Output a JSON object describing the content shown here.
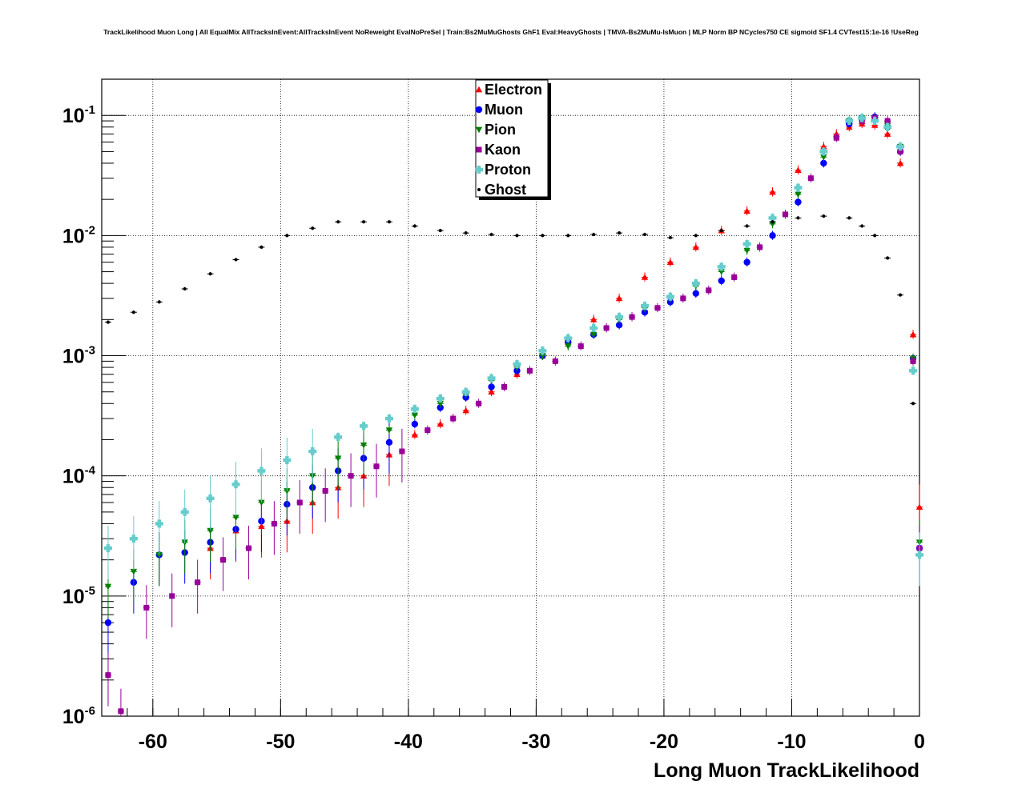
{
  "chart_data": {
    "type": "scatter",
    "title": "TrackLikelihood Muon Long | All EqualMix AllTracksInEvent:AllTracksInEvent NoReweight EvalNoPreSel | Train:Bs2MuMuGhosts GhF1 Eval:HeavyGhosts | TMVA-Bs2MuMu-IsMuon | MLP Norm BP NCycles750 CE sigmoid SF1.4 CVTest15:1e-16 !UseReg",
    "xlabel": "Long Muon TrackLikelihood",
    "ylabel": "",
    "xlim": [
      -64,
      0
    ],
    "ylim": [
      1e-06,
      0.2
    ],
    "yscale": "log",
    "grid": true,
    "legend_position": "top-center",
    "x_ticks": [
      -60,
      -50,
      -40,
      -30,
      -20,
      -10,
      0
    ],
    "x_tick_labels": [
      "-60",
      "-50",
      "-40",
      "-30",
      "-20",
      "-10",
      "0"
    ],
    "y_ticks": [
      {
        "value": 1e-06,
        "base": "10",
        "exp": "-6"
      },
      {
        "value": 1e-05,
        "base": "10",
        "exp": "-5"
      },
      {
        "value": 0.0001,
        "base": "10",
        "exp": "-4"
      },
      {
        "value": 0.001,
        "base": "10",
        "exp": "-3"
      },
      {
        "value": 0.01,
        "base": "10",
        "exp": "-2"
      },
      {
        "value": 0.1,
        "base": "10",
        "exp": "-1"
      }
    ],
    "series": [
      {
        "name": "Electron",
        "color": "#ff0000",
        "marker": "triangle-up",
        "x": [
          -55.5,
          -53.5,
          -51.5,
          -49.5,
          -47.5,
          -45.5,
          -43.5,
          -41.5,
          -39.5,
          -37.5,
          -35.5,
          -33.5,
          -31.5,
          -29.5,
          -27.5,
          -25.5,
          -23.5,
          -21.5,
          -19.5,
          -17.5,
          -15.5,
          -13.5,
          -11.5,
          -9.5,
          -7.5,
          -6.5,
          -5.5,
          -4.5,
          -3.5,
          -2.5,
          -1.5,
          -0.5,
          0
        ],
        "y": [
          2.5e-05,
          3.5e-05,
          3.8e-05,
          4.2e-05,
          6e-05,
          8e-05,
          0.0001,
          0.00015,
          0.00022,
          0.00027,
          0.00035,
          0.0005,
          0.0007,
          0.001,
          0.0013,
          0.002,
          0.003,
          0.0045,
          0.006,
          0.008,
          0.011,
          0.016,
          0.023,
          0.035,
          0.055,
          0.07,
          0.08,
          0.085,
          0.083,
          0.07,
          0.04,
          0.0015,
          5.5e-05
        ]
      },
      {
        "name": "Muon",
        "color": "#0000ff",
        "marker": "circle",
        "x": [
          -63.5,
          -61.5,
          -59.5,
          -57.5,
          -55.5,
          -53.5,
          -51.5,
          -49.5,
          -47.5,
          -45.5,
          -43.5,
          -41.5,
          -39.5,
          -37.5,
          -35.5,
          -33.5,
          -31.5,
          -29.5,
          -27.5,
          -25.5,
          -23.5,
          -21.5,
          -19.5,
          -17.5,
          -15.5,
          -13.5,
          -11.5,
          -9.5,
          -7.5,
          -5.5,
          -4.5,
          -3.5,
          -2.5,
          -1.5,
          -0.5,
          0
        ],
        "y": [
          6e-06,
          1.3e-05,
          2.2e-05,
          2.3e-05,
          2.8e-05,
          3.6e-05,
          4.2e-05,
          5.8e-05,
          8e-05,
          0.00011,
          0.00014,
          0.00019,
          0.00027,
          0.00037,
          0.00045,
          0.00055,
          0.00075,
          0.001,
          0.0013,
          0.0015,
          0.0018,
          0.0023,
          0.0028,
          0.0033,
          0.0042,
          0.006,
          0.01,
          0.019,
          0.04,
          0.085,
          0.095,
          0.097,
          0.08,
          0.05,
          0.00095,
          2.5e-05
        ]
      },
      {
        "name": "Pion",
        "color": "#008000",
        "marker": "triangle-down",
        "x": [
          -63.5,
          -61.5,
          -59.5,
          -57.5,
          -55.5,
          -53.5,
          -51.5,
          -49.5,
          -47.5,
          -45.5,
          -43.5,
          -41.5,
          -39.5,
          -37.5,
          -35.5,
          -33.5,
          -31.5,
          -29.5,
          -27.5,
          -25.5,
          -23.5,
          -21.5,
          -19.5,
          -17.5,
          -15.5,
          -13.5,
          -11.5,
          -9.5,
          -7.5,
          -5.5,
          -4.5,
          -3.5,
          -2.5,
          -1.5,
          -0.5,
          0
        ],
        "y": [
          1.2e-05,
          1.6e-05,
          2.2e-05,
          2.8e-05,
          3.5e-05,
          4.5e-05,
          6e-05,
          7.5e-05,
          0.0001,
          0.00014,
          0.00018,
          0.00024,
          0.00032,
          0.0004,
          0.00048,
          0.00062,
          0.0008,
          0.001,
          0.0012,
          0.0015,
          0.002,
          0.0025,
          0.003,
          0.0038,
          0.005,
          0.0075,
          0.0125,
          0.022,
          0.045,
          0.09,
          0.095,
          0.095,
          0.085,
          0.055,
          0.00095,
          2.8e-05
        ]
      },
      {
        "name": "Kaon",
        "color": "#990099",
        "marker": "square",
        "x": [
          -63.5,
          -62.5,
          -60.5,
          -58.5,
          -56.5,
          -54.5,
          -52.5,
          -50.5,
          -48.5,
          -46.5,
          -44.5,
          -42.5,
          -40.5,
          -38.5,
          -36.5,
          -34.5,
          -32.5,
          -30.5,
          -28.5,
          -26.5,
          -24.5,
          -22.5,
          -20.5,
          -18.5,
          -16.5,
          -14.5,
          -12.5,
          -10.5,
          -8.5,
          -6.5,
          -4.5,
          -3.5,
          -2.5,
          -1.5,
          -0.5,
          0
        ],
        "y": [
          2.2e-06,
          1.1e-06,
          8e-06,
          1e-05,
          1.3e-05,
          2e-05,
          2.5e-05,
          4e-05,
          6e-05,
          7.5e-05,
          0.0001,
          0.00012,
          0.00016,
          0.00024,
          0.0003,
          0.0004,
          0.00055,
          0.00075,
          0.0009,
          0.0012,
          0.0017,
          0.0021,
          0.0025,
          0.003,
          0.0035,
          0.0045,
          0.008,
          0.015,
          0.03,
          0.065,
          0.09,
          0.095,
          0.09,
          0.05,
          0.0009,
          2.5e-05
        ]
      },
      {
        "name": "Proton",
        "color": "#66cccc",
        "marker": "cross",
        "x": [
          -63.5,
          -61.5,
          -59.5,
          -57.5,
          -55.5,
          -53.5,
          -51.5,
          -49.5,
          -47.5,
          -45.5,
          -43.5,
          -41.5,
          -39.5,
          -37.5,
          -35.5,
          -33.5,
          -31.5,
          -29.5,
          -27.5,
          -25.5,
          -23.5,
          -21.5,
          -19.5,
          -17.5,
          -15.5,
          -13.5,
          -11.5,
          -9.5,
          -7.5,
          -5.5,
          -4.5,
          -3.5,
          -2.5,
          -1.5,
          -0.5,
          0
        ],
        "y": [
          2.5e-05,
          3e-05,
          4e-05,
          5e-05,
          6.5e-05,
          8.5e-05,
          0.00011,
          0.000135,
          0.00016,
          0.00021,
          0.00026,
          0.0003,
          0.00036,
          0.00044,
          0.0005,
          0.00065,
          0.00085,
          0.0011,
          0.0014,
          0.0017,
          0.0021,
          0.0026,
          0.0031,
          0.004,
          0.0055,
          0.0085,
          0.014,
          0.025,
          0.05,
          0.09,
          0.095,
          0.09,
          0.08,
          0.055,
          0.00075,
          2.2e-05
        ]
      },
      {
        "name": "Ghost",
        "color": "#000000",
        "marker": "dot",
        "x": [
          -63.5,
          -61.5,
          -59.5,
          -57.5,
          -55.5,
          -53.5,
          -51.5,
          -49.5,
          -47.5,
          -45.5,
          -43.5,
          -41.5,
          -39.5,
          -37.5,
          -35.5,
          -33.5,
          -31.5,
          -29.5,
          -27.5,
          -25.5,
          -23.5,
          -21.5,
          -19.5,
          -17.5,
          -15.5,
          -13.5,
          -11.5,
          -9.5,
          -7.5,
          -5.5,
          -4.5,
          -3.5,
          -2.5,
          -1.5,
          -0.5
        ],
        "y": [
          0.0019,
          0.0023,
          0.0028,
          0.0036,
          0.0048,
          0.0063,
          0.008,
          0.01,
          0.0115,
          0.013,
          0.013,
          0.013,
          0.012,
          0.011,
          0.0105,
          0.0102,
          0.01,
          0.01,
          0.01,
          0.0102,
          0.0105,
          0.0102,
          0.0096,
          0.01,
          0.011,
          0.012,
          0.013,
          0.014,
          0.0145,
          0.014,
          0.012,
          0.01,
          0.0065,
          0.0032,
          0.0004
        ]
      }
    ]
  }
}
